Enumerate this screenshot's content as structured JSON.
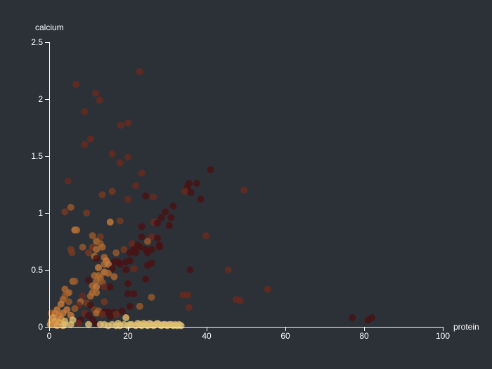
{
  "chart_data": {
    "type": "scatter",
    "title": "",
    "xlabel": "protein",
    "ylabel": "calcium",
    "xlim": [
      0,
      100
    ],
    "ylim": [
      0,
      2.5
    ],
    "x_ticks": [
      {
        "value": 0,
        "label": "0"
      },
      {
        "value": 20,
        "label": "20"
      },
      {
        "value": 40,
        "label": "40"
      },
      {
        "value": 60,
        "label": "60"
      },
      {
        "value": 80,
        "label": "80"
      },
      {
        "value": 100,
        "label": "100"
      }
    ],
    "y_ticks": [
      {
        "value": 0,
        "label": "0"
      },
      {
        "value": 0.5,
        "label": "0.5"
      },
      {
        "value": 1,
        "label": "1"
      },
      {
        "value": 1.5,
        "label": "1.5"
      },
      {
        "value": 2,
        "label": "2"
      },
      {
        "value": 2.5,
        "label": "2.5"
      }
    ],
    "grid": false,
    "legend": "none",
    "point_opacity": 0.8,
    "points": [
      {
        "x": 23.0,
        "y": 2.24,
        "color": "#6b2a1e"
      },
      {
        "x": 6.8,
        "y": 2.13,
        "color": "#6b2a1e"
      },
      {
        "x": 11.8,
        "y": 2.05,
        "color": "#6b2a1e"
      },
      {
        "x": 12.8,
        "y": 1.99,
        "color": "#6b2a1e"
      },
      {
        "x": 9.0,
        "y": 1.89,
        "color": "#6b2a1e"
      },
      {
        "x": 20.0,
        "y": 1.79,
        "color": "#6b2a1e"
      },
      {
        "x": 18.2,
        "y": 1.77,
        "color": "#6b2a1e"
      },
      {
        "x": 10.5,
        "y": 1.65,
        "color": "#6b2a1e"
      },
      {
        "x": 9.0,
        "y": 1.6,
        "color": "#6b2a1e"
      },
      {
        "x": 16.0,
        "y": 1.52,
        "color": "#6b2a1e"
      },
      {
        "x": 20.0,
        "y": 1.49,
        "color": "#6b2a1e"
      },
      {
        "x": 18.0,
        "y": 1.44,
        "color": "#6b2a1e"
      },
      {
        "x": 41.0,
        "y": 1.38,
        "color": "#4a1212"
      },
      {
        "x": 23.5,
        "y": 1.35,
        "color": "#6b2a1e"
      },
      {
        "x": 4.8,
        "y": 1.28,
        "color": "#6b2a1e"
      },
      {
        "x": 35.5,
        "y": 1.26,
        "color": "#4a1212"
      },
      {
        "x": 37.5,
        "y": 1.26,
        "color": "#4a1212"
      },
      {
        "x": 22.0,
        "y": 1.24,
        "color": "#6b2a1e"
      },
      {
        "x": 35.0,
        "y": 1.22,
        "color": "#4a1212"
      },
      {
        "x": 49.5,
        "y": 1.2,
        "color": "#6b2a1e"
      },
      {
        "x": 16.0,
        "y": 1.19,
        "color": "#7a3a20"
      },
      {
        "x": 34.5,
        "y": 1.19,
        "color": "#6b2a1e"
      },
      {
        "x": 36.0,
        "y": 1.18,
        "color": "#4a1212"
      },
      {
        "x": 13.5,
        "y": 1.16,
        "color": "#7a3a20"
      },
      {
        "x": 24.5,
        "y": 1.15,
        "color": "#4a1212"
      },
      {
        "x": 26.5,
        "y": 1.14,
        "color": "#6b2a1e"
      },
      {
        "x": 20.0,
        "y": 1.12,
        "color": "#6b2a1e"
      },
      {
        "x": 38.5,
        "y": 1.12,
        "color": "#4a1212"
      },
      {
        "x": 31.5,
        "y": 1.06,
        "color": "#4a1212"
      },
      {
        "x": 5.5,
        "y": 1.05,
        "color": "#9a5a2a"
      },
      {
        "x": 4.0,
        "y": 1.01,
        "color": "#7a3a20"
      },
      {
        "x": 9.5,
        "y": 1.0,
        "color": "#7a3a20"
      },
      {
        "x": 29.5,
        "y": 1.01,
        "color": "#4a1212"
      },
      {
        "x": 28.5,
        "y": 0.96,
        "color": "#4a1212"
      },
      {
        "x": 31.0,
        "y": 0.96,
        "color": "#4a1212"
      },
      {
        "x": 18.0,
        "y": 0.93,
        "color": "#7a3a20"
      },
      {
        "x": 15.5,
        "y": 0.92,
        "color": "#c87a3a"
      },
      {
        "x": 26.5,
        "y": 0.92,
        "color": "#6b2a1e"
      },
      {
        "x": 27.5,
        "y": 0.91,
        "color": "#4a1212"
      },
      {
        "x": 30.5,
        "y": 0.89,
        "color": "#4a1212"
      },
      {
        "x": 23.5,
        "y": 0.88,
        "color": "#4a1212"
      },
      {
        "x": 6.5,
        "y": 0.85,
        "color": "#c87a3a"
      },
      {
        "x": 7.0,
        "y": 0.85,
        "color": "#b06a30"
      },
      {
        "x": 39.8,
        "y": 0.8,
        "color": "#6b2a1e"
      },
      {
        "x": 11.0,
        "y": 0.8,
        "color": "#9a5a2a"
      },
      {
        "x": 13.0,
        "y": 0.79,
        "color": "#7a3a20"
      },
      {
        "x": 23.5,
        "y": 0.79,
        "color": "#4a1212"
      },
      {
        "x": 26.0,
        "y": 0.79,
        "color": "#6b2a1e"
      },
      {
        "x": 27.5,
        "y": 0.78,
        "color": "#4a1212"
      },
      {
        "x": 12.0,
        "y": 0.75,
        "color": "#b06a30"
      },
      {
        "x": 25.0,
        "y": 0.75,
        "color": "#9a5a2a"
      },
      {
        "x": 13.0,
        "y": 0.73,
        "color": "#9a5a2a"
      },
      {
        "x": 21.0,
        "y": 0.73,
        "color": "#6b2a1e"
      },
      {
        "x": 22.5,
        "y": 0.72,
        "color": "#4a1212"
      },
      {
        "x": 28.0,
        "y": 0.72,
        "color": "#4a1212"
      },
      {
        "x": 8.5,
        "y": 0.7,
        "color": "#9a5a2a"
      },
      {
        "x": 11.0,
        "y": 0.7,
        "color": "#7a3a20"
      },
      {
        "x": 13.5,
        "y": 0.7,
        "color": "#b06a30"
      },
      {
        "x": 23.0,
        "y": 0.7,
        "color": "#4a1212"
      },
      {
        "x": 28.0,
        "y": 0.7,
        "color": "#4a1212"
      },
      {
        "x": 5.5,
        "y": 0.68,
        "color": "#7a3a20"
      },
      {
        "x": 12.0,
        "y": 0.68,
        "color": "#b06a30"
      },
      {
        "x": 19.0,
        "y": 0.68,
        "color": "#7a3a20"
      },
      {
        "x": 21.5,
        "y": 0.68,
        "color": "#4a1212"
      },
      {
        "x": 24.5,
        "y": 0.68,
        "color": "#4a1212"
      },
      {
        "x": 26.0,
        "y": 0.68,
        "color": "#4a1212"
      },
      {
        "x": 5.8,
        "y": 0.65,
        "color": "#7a3a20"
      },
      {
        "x": 10.0,
        "y": 0.65,
        "color": "#7a3a20"
      },
      {
        "x": 17.0,
        "y": 0.65,
        "color": "#9a5a2a"
      },
      {
        "x": 20.5,
        "y": 0.65,
        "color": "#4a1212"
      },
      {
        "x": 22.0,
        "y": 0.65,
        "color": "#4a1212"
      },
      {
        "x": 25.0,
        "y": 0.65,
        "color": "#4a1212"
      },
      {
        "x": 11.5,
        "y": 0.62,
        "color": "#b06a30"
      },
      {
        "x": 14.0,
        "y": 0.61,
        "color": "#b06a30"
      },
      {
        "x": 12.0,
        "y": 0.6,
        "color": "#4a1212"
      },
      {
        "x": 14.5,
        "y": 0.58,
        "color": "#c87a3a"
      },
      {
        "x": 16.5,
        "y": 0.57,
        "color": "#4a1212"
      },
      {
        "x": 17.5,
        "y": 0.57,
        "color": "#4a1212"
      },
      {
        "x": 19.5,
        "y": 0.57,
        "color": "#4a1212"
      },
      {
        "x": 20.5,
        "y": 0.58,
        "color": "#4a1212"
      },
      {
        "x": 14.0,
        "y": 0.55,
        "color": "#b06a30"
      },
      {
        "x": 15.0,
        "y": 0.55,
        "color": "#c87a3a"
      },
      {
        "x": 18.0,
        "y": 0.55,
        "color": "#4a1212"
      },
      {
        "x": 26.0,
        "y": 0.56,
        "color": "#4a1212"
      },
      {
        "x": 25.0,
        "y": 0.54,
        "color": "#4a1212"
      },
      {
        "x": 12.5,
        "y": 0.52,
        "color": "#c87a3a"
      },
      {
        "x": 16.0,
        "y": 0.51,
        "color": "#4a1212"
      },
      {
        "x": 19.5,
        "y": 0.5,
        "color": "#4a1212"
      },
      {
        "x": 21.5,
        "y": 0.51,
        "color": "#6b2a1e"
      },
      {
        "x": 35.8,
        "y": 0.5,
        "color": "#4a1212"
      },
      {
        "x": 45.5,
        "y": 0.5,
        "color": "#6b2a1e"
      },
      {
        "x": 14.0,
        "y": 0.48,
        "color": "#c87a3a"
      },
      {
        "x": 15.0,
        "y": 0.47,
        "color": "#b06a30"
      },
      {
        "x": 11.5,
        "y": 0.45,
        "color": "#b06a30"
      },
      {
        "x": 12.5,
        "y": 0.45,
        "color": "#b06a30"
      },
      {
        "x": 13.0,
        "y": 0.43,
        "color": "#b06a30"
      },
      {
        "x": 16.5,
        "y": 0.44,
        "color": "#b06a30"
      },
      {
        "x": 24.5,
        "y": 0.42,
        "color": "#4a1212"
      },
      {
        "x": 6.0,
        "y": 0.4,
        "color": "#b06a30"
      },
      {
        "x": 6.5,
        "y": 0.4,
        "color": "#9a5a2a"
      },
      {
        "x": 10.0,
        "y": 0.41,
        "color": "#4a1212"
      },
      {
        "x": 12.0,
        "y": 0.4,
        "color": "#b06a30"
      },
      {
        "x": 13.5,
        "y": 0.39,
        "color": "#9a5a2a"
      },
      {
        "x": 20.0,
        "y": 0.38,
        "color": "#4a1212"
      },
      {
        "x": 11.0,
        "y": 0.36,
        "color": "#b06a30"
      },
      {
        "x": 12.0,
        "y": 0.35,
        "color": "#c87a3a"
      },
      {
        "x": 14.0,
        "y": 0.35,
        "color": "#6b2a1e"
      },
      {
        "x": 15.5,
        "y": 0.35,
        "color": "#4a1212"
      },
      {
        "x": 4.0,
        "y": 0.33,
        "color": "#b06a30"
      },
      {
        "x": 55.5,
        "y": 0.33,
        "color": "#6b2a1e"
      },
      {
        "x": 4.5,
        "y": 0.3,
        "color": "#9a5a2a"
      },
      {
        "x": 5.0,
        "y": 0.3,
        "color": "#b06a30"
      },
      {
        "x": 11.0,
        "y": 0.3,
        "color": "#b06a30"
      },
      {
        "x": 12.0,
        "y": 0.3,
        "color": "#b06a30"
      },
      {
        "x": 20.0,
        "y": 0.29,
        "color": "#4a1212"
      },
      {
        "x": 21.5,
        "y": 0.29,
        "color": "#4a1212"
      },
      {
        "x": 34.0,
        "y": 0.28,
        "color": "#6b2a1e"
      },
      {
        "x": 35.2,
        "y": 0.28,
        "color": "#6b2a1e"
      },
      {
        "x": 4.0,
        "y": 0.27,
        "color": "#9a5a2a"
      },
      {
        "x": 8.5,
        "y": 0.27,
        "color": "#6b2a1e"
      },
      {
        "x": 10.5,
        "y": 0.27,
        "color": "#b06a30"
      },
      {
        "x": 26.0,
        "y": 0.26,
        "color": "#9a5a2a"
      },
      {
        "x": 3.5,
        "y": 0.24,
        "color": "#b06a30"
      },
      {
        "x": 47.5,
        "y": 0.24,
        "color": "#6b2a1e"
      },
      {
        "x": 48.5,
        "y": 0.23,
        "color": "#6b2a1e"
      },
      {
        "x": 5.0,
        "y": 0.22,
        "color": "#9a5a2a"
      },
      {
        "x": 8.0,
        "y": 0.22,
        "color": "#b06a30"
      },
      {
        "x": 9.5,
        "y": 0.21,
        "color": "#7a3a20"
      },
      {
        "x": 14.0,
        "y": 0.22,
        "color": "#7a3a20"
      },
      {
        "x": 3.0,
        "y": 0.2,
        "color": "#c87a3a"
      },
      {
        "x": 7.5,
        "y": 0.19,
        "color": "#6b2a1e"
      },
      {
        "x": 10.5,
        "y": 0.19,
        "color": "#4a1212"
      },
      {
        "x": 20.5,
        "y": 0.18,
        "color": "#4a1212"
      },
      {
        "x": 23.0,
        "y": 0.18,
        "color": "#9a5a2a"
      },
      {
        "x": 35.5,
        "y": 0.17,
        "color": "#6b2a1e"
      },
      {
        "x": 2.0,
        "y": 0.15,
        "color": "#c87a3a"
      },
      {
        "x": 4.5,
        "y": 0.15,
        "color": "#c87a3a"
      },
      {
        "x": 6.5,
        "y": 0.16,
        "color": "#9a5a2a"
      },
      {
        "x": 11.5,
        "y": 0.15,
        "color": "#7a3a20"
      },
      {
        "x": 12.5,
        "y": 0.14,
        "color": "#9a5a2a"
      },
      {
        "x": 14.0,
        "y": 0.13,
        "color": "#4a1212"
      },
      {
        "x": 15.0,
        "y": 0.13,
        "color": "#4a1212"
      },
      {
        "x": 16.5,
        "y": 0.13,
        "color": "#4a1212"
      },
      {
        "x": 18.5,
        "y": 0.14,
        "color": "#4a1212"
      },
      {
        "x": 0.5,
        "y": 0.12,
        "color": "#9a5a2a"
      },
      {
        "x": 1.5,
        "y": 0.12,
        "color": "#c87a3a"
      },
      {
        "x": 3.5,
        "y": 0.12,
        "color": "#c87a3a"
      },
      {
        "x": 9.0,
        "y": 0.12,
        "color": "#6b2a1e"
      },
      {
        "x": 12.0,
        "y": 0.12,
        "color": "#b06a30"
      },
      {
        "x": 13.5,
        "y": 0.11,
        "color": "#6b2a1e"
      },
      {
        "x": 17.0,
        "y": 0.11,
        "color": "#6b2a1e"
      },
      {
        "x": 2.5,
        "y": 0.1,
        "color": "#c87a3a"
      },
      {
        "x": 5.5,
        "y": 0.1,
        "color": "#c87a3a"
      },
      {
        "x": 10.0,
        "y": 0.1,
        "color": "#4a1212"
      },
      {
        "x": 15.5,
        "y": 0.09,
        "color": "#4a1212"
      },
      {
        "x": 19.5,
        "y": 0.09,
        "color": "#4a1212"
      },
      {
        "x": 77.0,
        "y": 0.08,
        "color": "#4a1212"
      },
      {
        "x": 82.0,
        "y": 0.08,
        "color": "#4a1212"
      },
      {
        "x": 19.5,
        "y": 0.08,
        "color": "#e0c070"
      },
      {
        "x": 1.0,
        "y": 0.08,
        "color": "#e0a050"
      },
      {
        "x": 3.0,
        "y": 0.07,
        "color": "#d08a40"
      },
      {
        "x": 6.0,
        "y": 0.06,
        "color": "#e0c070"
      },
      {
        "x": 8.0,
        "y": 0.06,
        "color": "#4a1212"
      },
      {
        "x": 11.0,
        "y": 0.06,
        "color": "#4a1212"
      },
      {
        "x": 81.0,
        "y": 0.06,
        "color": "#4a1212"
      },
      {
        "x": 0.5,
        "y": 0.05,
        "color": "#d08a40"
      },
      {
        "x": 1.5,
        "y": 0.05,
        "color": "#e0a050"
      },
      {
        "x": 2.5,
        "y": 0.04,
        "color": "#e0a050"
      },
      {
        "x": 4.0,
        "y": 0.05,
        "color": "#e0b060"
      },
      {
        "x": 7.5,
        "y": 0.03,
        "color": "#6b2a1e"
      },
      {
        "x": 10.0,
        "y": 0.02,
        "color": "#e0c070"
      },
      {
        "x": 0.3,
        "y": 0.02,
        "color": "#e0a050"
      },
      {
        "x": 1.2,
        "y": 0.02,
        "color": "#d08a40"
      },
      {
        "x": 2.0,
        "y": 0.01,
        "color": "#e0a050"
      },
      {
        "x": 3.5,
        "y": 0.01,
        "color": "#e0b060"
      },
      {
        "x": 4.0,
        "y": 0.02,
        "color": "#e0c070"
      },
      {
        "x": 5.5,
        "y": 0.02,
        "color": "#e0c070"
      },
      {
        "x": 12.0,
        "y": 0.02,
        "color": "#4a1212"
      },
      {
        "x": 13.0,
        "y": 0.02,
        "color": "#e0c070"
      },
      {
        "x": 14.0,
        "y": 0.02,
        "color": "#e0c070"
      },
      {
        "x": 15.0,
        "y": 0.01,
        "color": "#e0c070"
      },
      {
        "x": 16.0,
        "y": 0.02,
        "color": "#e0c070"
      },
      {
        "x": 17.0,
        "y": 0.01,
        "color": "#e0c070"
      },
      {
        "x": 17.5,
        "y": 0.03,
        "color": "#e0c070"
      },
      {
        "x": 18.0,
        "y": 0.01,
        "color": "#e0c070"
      },
      {
        "x": 19.0,
        "y": 0.02,
        "color": "#e0c070"
      },
      {
        "x": 20.0,
        "y": 0.01,
        "color": "#e0c070"
      },
      {
        "x": 20.5,
        "y": 0.02,
        "color": "#e0c070"
      },
      {
        "x": 21.0,
        "y": 0.02,
        "color": "#e0c070"
      },
      {
        "x": 22.0,
        "y": 0.01,
        "color": "#e0c070"
      },
      {
        "x": 22.5,
        "y": 0.03,
        "color": "#e0c070"
      },
      {
        "x": 23.0,
        "y": 0.02,
        "color": "#e0c070"
      },
      {
        "x": 23.5,
        "y": 0.01,
        "color": "#e0c070"
      },
      {
        "x": 24.0,
        "y": 0.03,
        "color": "#e0c070"
      },
      {
        "x": 24.5,
        "y": 0.02,
        "color": "#e0c070"
      },
      {
        "x": 25.0,
        "y": 0.01,
        "color": "#e0c070"
      },
      {
        "x": 25.5,
        "y": 0.03,
        "color": "#e0c070"
      },
      {
        "x": 26.0,
        "y": 0.02,
        "color": "#e0c070"
      },
      {
        "x": 26.5,
        "y": 0.01,
        "color": "#e0c070"
      },
      {
        "x": 27.0,
        "y": 0.02,
        "color": "#e0c070"
      },
      {
        "x": 27.5,
        "y": 0.03,
        "color": "#e0c070"
      },
      {
        "x": 28.0,
        "y": 0.02,
        "color": "#e0c070"
      },
      {
        "x": 28.5,
        "y": 0.01,
        "color": "#e0c070"
      },
      {
        "x": 29.0,
        "y": 0.02,
        "color": "#e0c070"
      },
      {
        "x": 29.5,
        "y": 0.02,
        "color": "#e0c070"
      },
      {
        "x": 30.0,
        "y": 0.01,
        "color": "#e0c070"
      },
      {
        "x": 30.5,
        "y": 0.02,
        "color": "#e0c070"
      },
      {
        "x": 31.0,
        "y": 0.02,
        "color": "#e0c070"
      },
      {
        "x": 31.5,
        "y": 0.01,
        "color": "#e0c070"
      },
      {
        "x": 32.0,
        "y": 0.02,
        "color": "#e0c070"
      },
      {
        "x": 32.5,
        "y": 0.01,
        "color": "#e0c070"
      },
      {
        "x": 33.0,
        "y": 0.02,
        "color": "#e0c070"
      },
      {
        "x": 33.5,
        "y": 0.01,
        "color": "#e0c070"
      }
    ]
  }
}
